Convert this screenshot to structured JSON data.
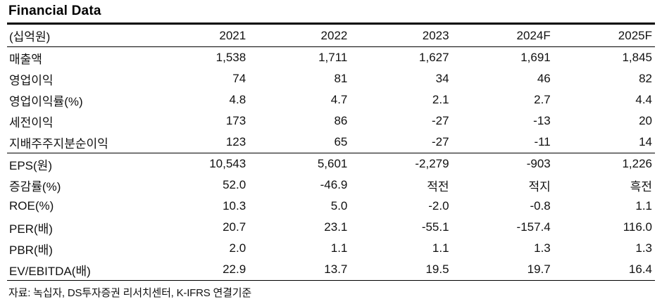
{
  "title": "Financial Data",
  "table": {
    "unit_header": "(십억원)",
    "columns": [
      "2021",
      "2022",
      "2023",
      "2024F",
      "2025F"
    ],
    "sections": [
      {
        "rows": [
          {
            "label": "매출액",
            "values": [
              "1,538",
              "1,711",
              "1,627",
              "1,691",
              "1,845"
            ]
          },
          {
            "label": "영업이익",
            "values": [
              "74",
              "81",
              "34",
              "46",
              "82"
            ]
          },
          {
            "label": "영업이익률(%)",
            "values": [
              "4.8",
              "4.7",
              "2.1",
              "2.7",
              "4.4"
            ]
          },
          {
            "label": "세전이익",
            "values": [
              "173",
              "86",
              "-27",
              "-13",
              "20"
            ]
          },
          {
            "label": "지배주주지분순이익",
            "values": [
              "123",
              "65",
              "-27",
              "-11",
              "14"
            ]
          }
        ]
      },
      {
        "rows": [
          {
            "label": "EPS(원)",
            "values": [
              "10,543",
              "5,601",
              "-2,279",
              "-903",
              "1,226"
            ]
          },
          {
            "label": "증감률(%)",
            "values": [
              "52.0",
              "-46.9",
              "적전",
              "적지",
              "흑전"
            ]
          },
          {
            "label": "ROE(%)",
            "values": [
              "10.3",
              "5.0",
              "-2.0",
              "-0.8",
              "1.1"
            ]
          },
          {
            "label": "PER(배)",
            "values": [
              "20.7",
              "23.1",
              "-55.1",
              "-157.4",
              "116.0"
            ]
          },
          {
            "label": "PBR(배)",
            "values": [
              "2.0",
              "1.1",
              "1.1",
              "1.3",
              "1.3"
            ]
          },
          {
            "label": "EV/EBITDA(배)",
            "values": [
              "22.9",
              "13.7",
              "19.5",
              "19.7",
              "16.4"
            ]
          }
        ]
      }
    ]
  },
  "source": "자료: 녹십자, DS투자증권 리서치센터, K-IFRS 연결기준",
  "colors": {
    "background": "#ffffff",
    "text": "#111111",
    "rule": "#000000"
  }
}
